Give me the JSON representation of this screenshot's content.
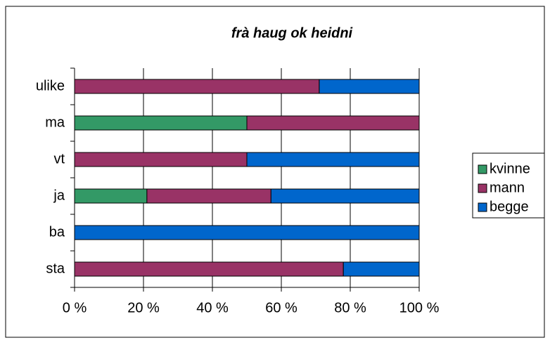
{
  "chart_data": {
    "type": "stacked_bar_horizontal",
    "title": "frà haug ok heidni",
    "categories": [
      "ulike",
      "ma",
      "vt",
      "ja",
      "ba",
      "sta"
    ],
    "series": [
      {
        "name": "kvinne",
        "color": "#339966",
        "values": [
          0,
          50,
          0,
          21,
          0,
          0
        ]
      },
      {
        "name": "mann",
        "color": "#993366",
        "values": [
          71,
          50,
          50,
          36,
          0,
          78
        ]
      },
      {
        "name": "begge",
        "color": "#0066cc",
        "values": [
          29,
          0,
          50,
          43,
          100,
          22
        ]
      }
    ],
    "xlim": [
      0,
      100
    ],
    "xticks": [
      {
        "value": 0,
        "label": "0 %"
      },
      {
        "value": 20,
        "label": "20 %"
      },
      {
        "value": 40,
        "label": "40 %"
      },
      {
        "value": 60,
        "label": "60 %"
      },
      {
        "value": 80,
        "label": "80 %"
      },
      {
        "value": 100,
        "label": "100 %"
      }
    ],
    "grid": true,
    "legend": "right"
  }
}
